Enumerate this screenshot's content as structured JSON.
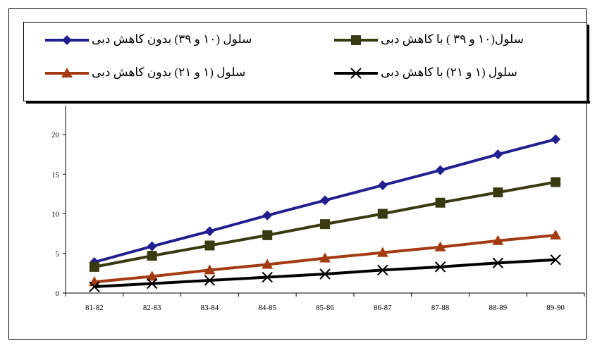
{
  "chart_data": {
    "type": "line",
    "categories": [
      "81-82",
      "82-83",
      "83-84",
      "84-85",
      "85-86",
      "86-87",
      "87-88",
      "88-89",
      "89-90"
    ],
    "ylim": [
      0,
      20
    ],
    "yticks": [
      0,
      5,
      10,
      15,
      20
    ],
    "grid": false,
    "legend_position": "top",
    "series": [
      {
        "name": "سلول (۱۰ و ۳۹) بدون کاهش دبی",
        "color": "#1f1f8f",
        "marker": "diamond",
        "values": [
          3.9,
          5.9,
          7.8,
          9.8,
          11.7,
          13.6,
          15.5,
          17.5,
          19.4
        ]
      },
      {
        "name": "سلول(۱۰ و ۳۹ ) با کاهش دبی",
        "color": "#3a3a12",
        "marker": "square",
        "values": [
          3.3,
          4.7,
          6.0,
          7.3,
          8.7,
          10.0,
          11.4,
          12.7,
          14.0
        ]
      },
      {
        "name": "سلول (۱ و ۲۱) بدون کاهش دبی",
        "color": "#a33a12",
        "marker": "triangle",
        "values": [
          1.4,
          2.1,
          2.9,
          3.6,
          4.4,
          5.1,
          5.8,
          6.6,
          7.3
        ]
      },
      {
        "name": "سلول (۱ و ۲۱) با کاهش دبی",
        "color": "#000000",
        "marker": "x",
        "values": [
          0.8,
          1.2,
          1.6,
          2.0,
          2.4,
          2.9,
          3.3,
          3.8,
          4.2
        ]
      }
    ]
  }
}
